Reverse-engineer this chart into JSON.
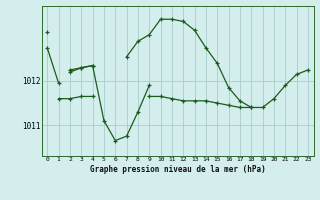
{
  "title": "Graphe pression niveau de la mer (hPa)",
  "bg_color": "#d4eeee",
  "grid_color": "#aacccc",
  "line_color": "#1a5c1a",
  "hours": [
    0,
    1,
    2,
    3,
    4,
    5,
    6,
    7,
    8,
    9,
    10,
    11,
    12,
    13,
    14,
    15,
    16,
    17,
    18,
    19,
    20,
    21,
    22,
    23
  ],
  "line1": [
    1012.75,
    1011.95,
    null,
    null,
    null,
    null,
    null,
    null,
    null,
    null,
    null,
    null,
    null,
    null,
    null,
    null,
    null,
    null,
    null,
    null,
    null,
    null,
    null,
    null
  ],
  "line2": [
    null,
    1011.6,
    1011.6,
    1011.65,
    1011.65,
    null,
    null,
    null,
    null,
    1011.65,
    1011.65,
    1011.6,
    1011.55,
    1011.55,
    1011.55,
    1011.5,
    1011.45,
    1011.4,
    1011.4,
    null,
    null,
    null,
    null,
    null
  ],
  "line3": [
    null,
    null,
    1012.2,
    1012.3,
    1012.35,
    1011.1,
    1010.65,
    1010.75,
    1011.3,
    1011.9,
    null,
    null,
    null,
    null,
    null,
    null,
    null,
    null,
    null,
    null,
    null,
    null,
    null,
    null
  ],
  "line4": [
    1013.1,
    null,
    1012.25,
    1012.3,
    1012.35,
    null,
    null,
    1012.55,
    1012.9,
    1013.05,
    1013.4,
    1013.4,
    1013.35,
    1013.15,
    1012.75,
    1012.4,
    1011.85,
    1011.55,
    1011.4,
    1011.4,
    1011.6,
    1011.9,
    1012.15,
    1012.25
  ],
  "ylim": [
    1010.3,
    1013.7
  ],
  "yticks": [
    1011.0,
    1012.0
  ],
  "xlim": [
    -0.5,
    23.5
  ]
}
